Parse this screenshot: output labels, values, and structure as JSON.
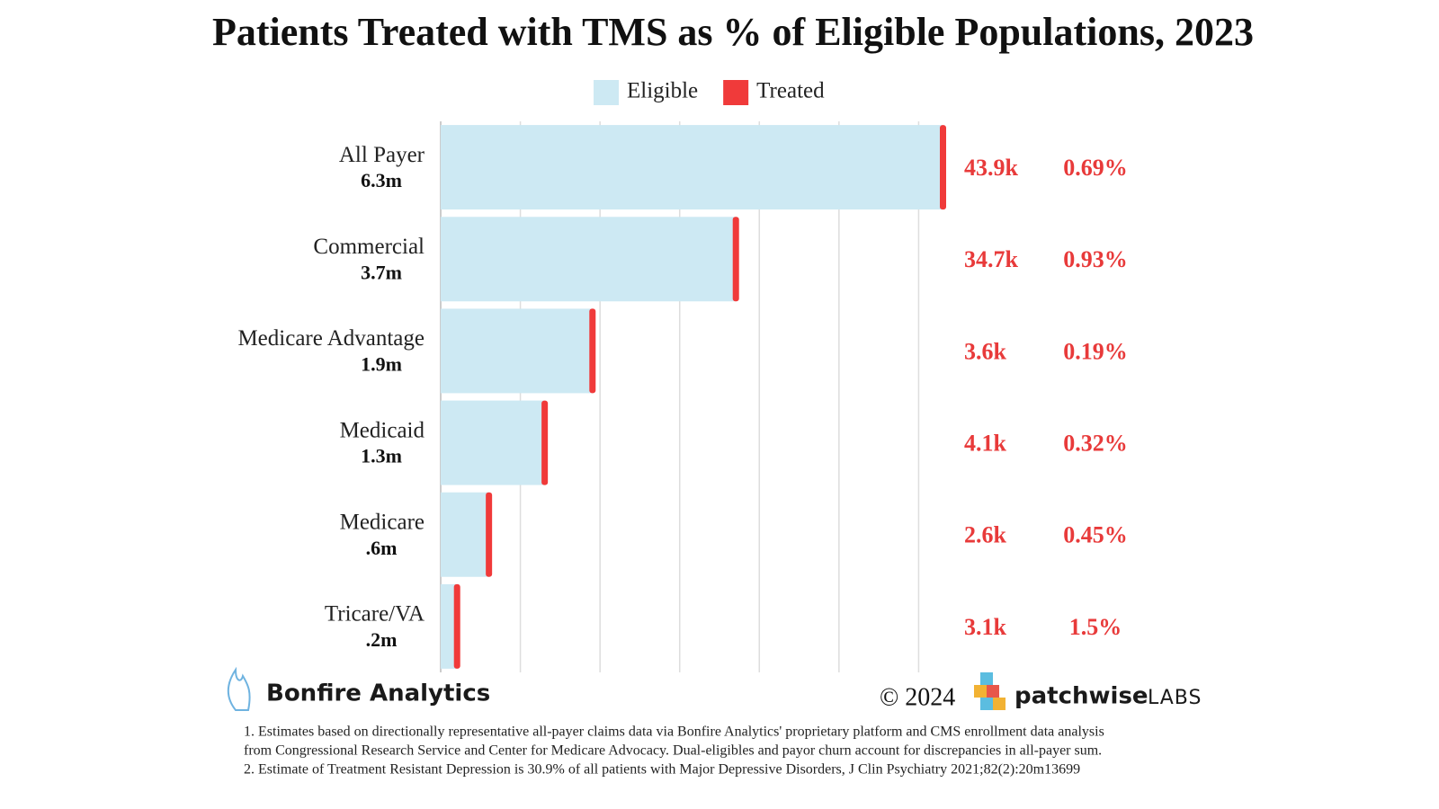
{
  "chart_data": {
    "type": "barh",
    "title": "Patients Treated with TMS as % of Eligible Populations, 2023",
    "categories": [
      "All Payer",
      "Commercial",
      "Medicare Advantage",
      "Medicaid",
      "Medicare",
      "Tricare/VA"
    ],
    "series": [
      {
        "name": "Eligible",
        "color": "#cde9f3",
        "values": [
          6.3,
          3.7,
          1.9,
          1.3,
          0.6,
          0.2
        ],
        "value_labels": [
          "6.3m",
          "3.7m",
          "1.9m",
          "1.3m",
          ".6m",
          ".2m"
        ]
      },
      {
        "name": "Treated",
        "color": "#f03a3a",
        "values": [
          43900,
          34700,
          3600,
          4100,
          2600,
          3100
        ],
        "value_labels": [
          "43.9k",
          "34.7k",
          "3.6k",
          "4.1k",
          "2.6k",
          "3.1k"
        ]
      }
    ],
    "treated_share": {
      "values": [
        0.69,
        0.93,
        0.19,
        0.32,
        0.45,
        1.5
      ],
      "value_labels": [
        "0.69%",
        "0.93%",
        "0.19%",
        "0.32%",
        "0.45%",
        "1.5%"
      ]
    },
    "xlim": [
      0,
      6.3
    ],
    "xticks": [
      0,
      1,
      2,
      3,
      4,
      5,
      6
    ],
    "grid": true,
    "legend": "top",
    "branding": {
      "left": "Bonfire Analytics",
      "copyright": "© 2024",
      "right_main": "patchwise",
      "right_sub": "LABS"
    },
    "footnotes": [
      "1. Estimates based on directionally representative all-payer claims data via Bonfire Analytics' proprietary platform and CMS enrollment data analysis",
      "from Congressional Research Service and Center for Medicare Advocacy. Dual-eligibles and payor churn account for discrepancies in all-payer sum.",
      "2. Estimate of Treatment Resistant Depression is 30.9% of all patients with Major Depressive Disorders, J Clin Psychiatry 2021;82(2):20m13699"
    ]
  }
}
